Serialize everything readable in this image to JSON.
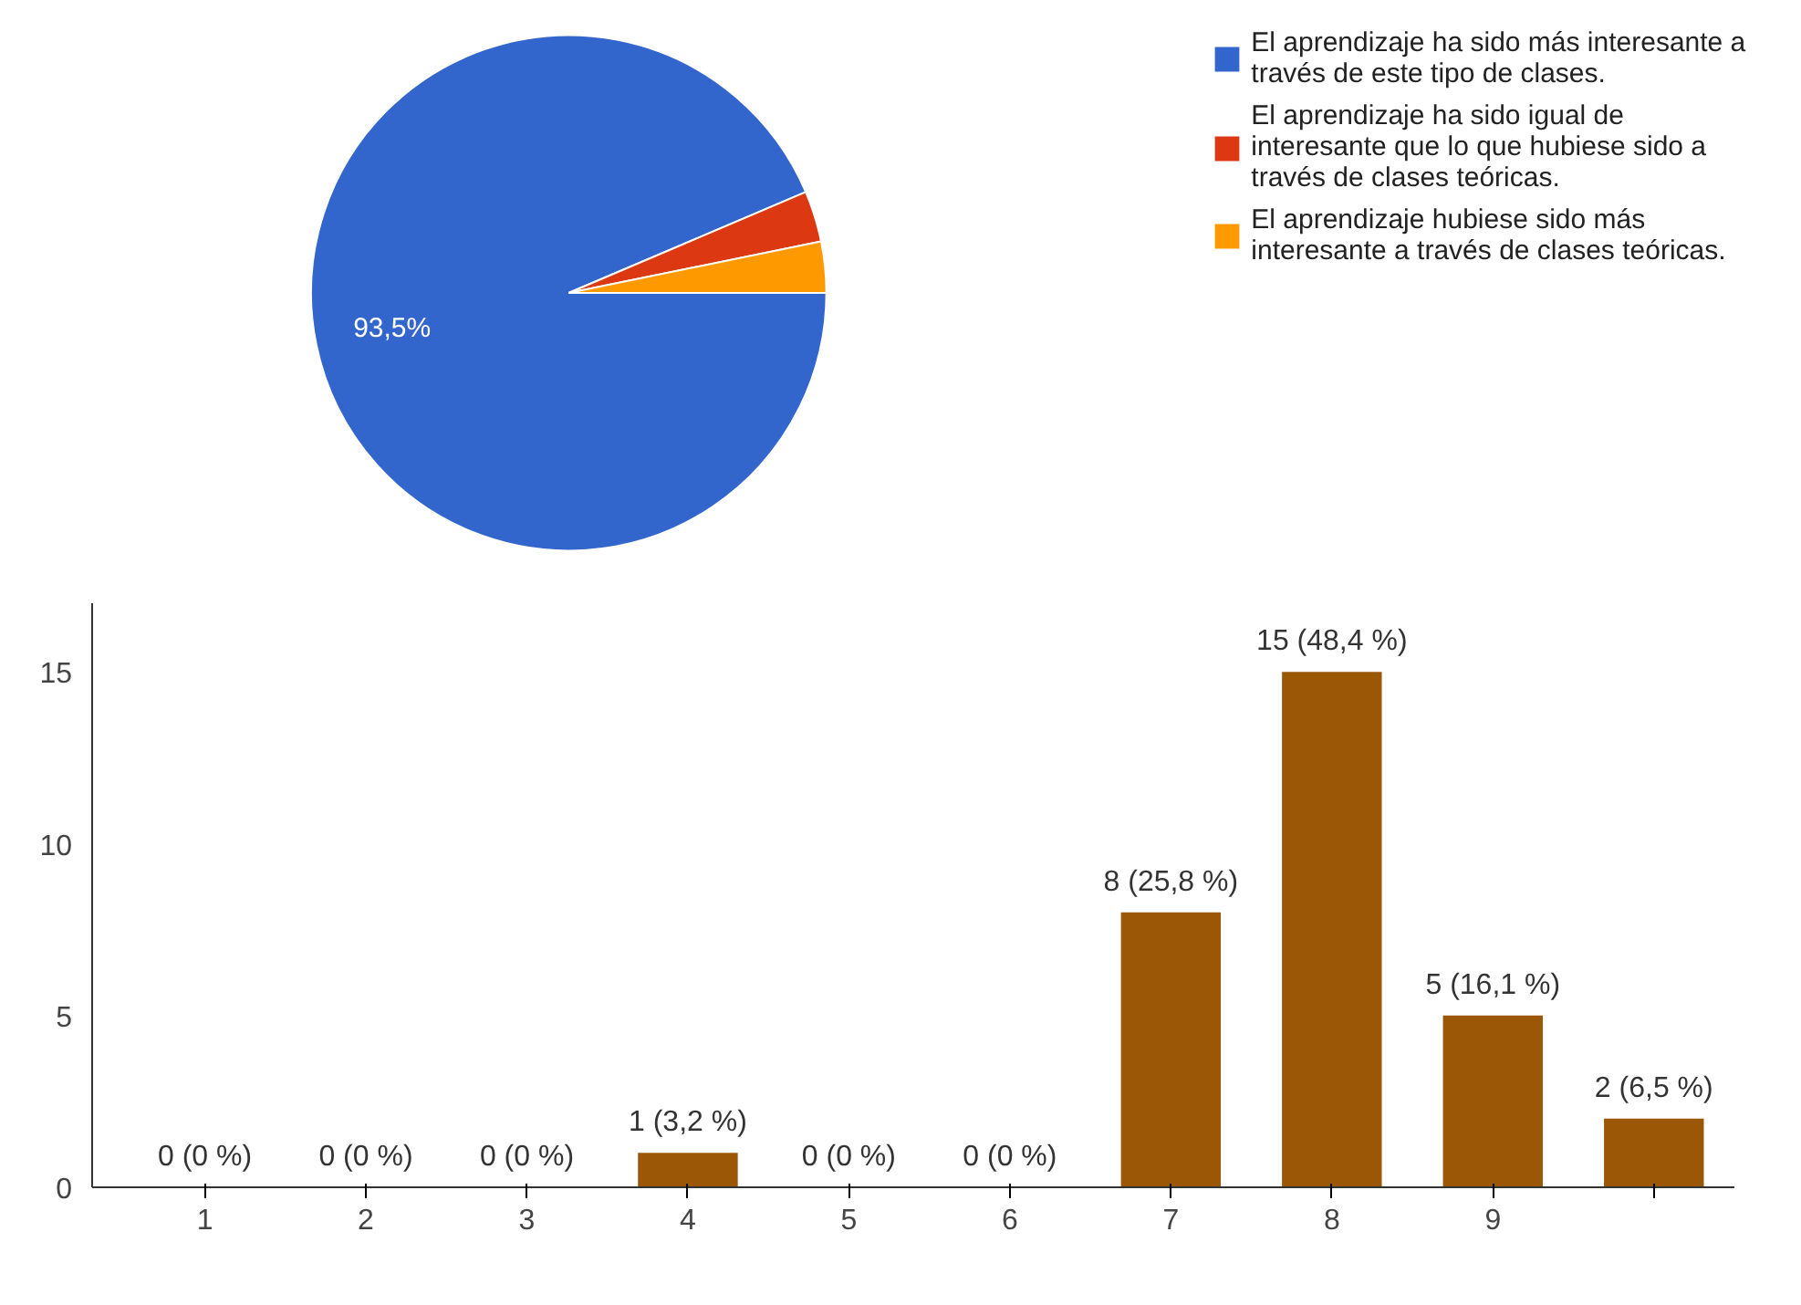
{
  "chart_data": [
    {
      "type": "pie",
      "categories": [
        "El aprendizaje ha sido más interesante a través de este tipo de clases.",
        "El aprendizaje ha sido igual de interesante que lo que hubiese sido a través de clases teóricas.",
        "El aprendizaje hubiese sido más interesante a través de clases teóricas."
      ],
      "values": [
        93.5,
        3.2,
        3.2
      ],
      "colors": [
        "#3366cc",
        "#dc3912",
        "#ff9900"
      ],
      "value_labels": [
        "93,5%",
        null,
        null
      ],
      "legend": "right"
    },
    {
      "type": "bar",
      "categories": [
        "1",
        "2",
        "3",
        "4",
        "5",
        "6",
        "7",
        "8",
        "9",
        null
      ],
      "values": [
        0,
        0,
        0,
        1,
        0,
        0,
        8,
        15,
        5,
        2
      ],
      "color": "#9c5706",
      "value_labels": [
        "0 (0 %)",
        "0 (0 %)",
        "0 (0 %)",
        "1 (3,2 %)",
        "0 (0 %)",
        "0 (0 %)",
        "8 (25,8 %)",
        "15 (48,4 %)",
        "5 (16,1 %)",
        "2 (6,5 %)"
      ],
      "ylim": [
        0,
        17
      ],
      "yticks": [
        0,
        5,
        10,
        15
      ],
      "grid": false
    }
  ]
}
